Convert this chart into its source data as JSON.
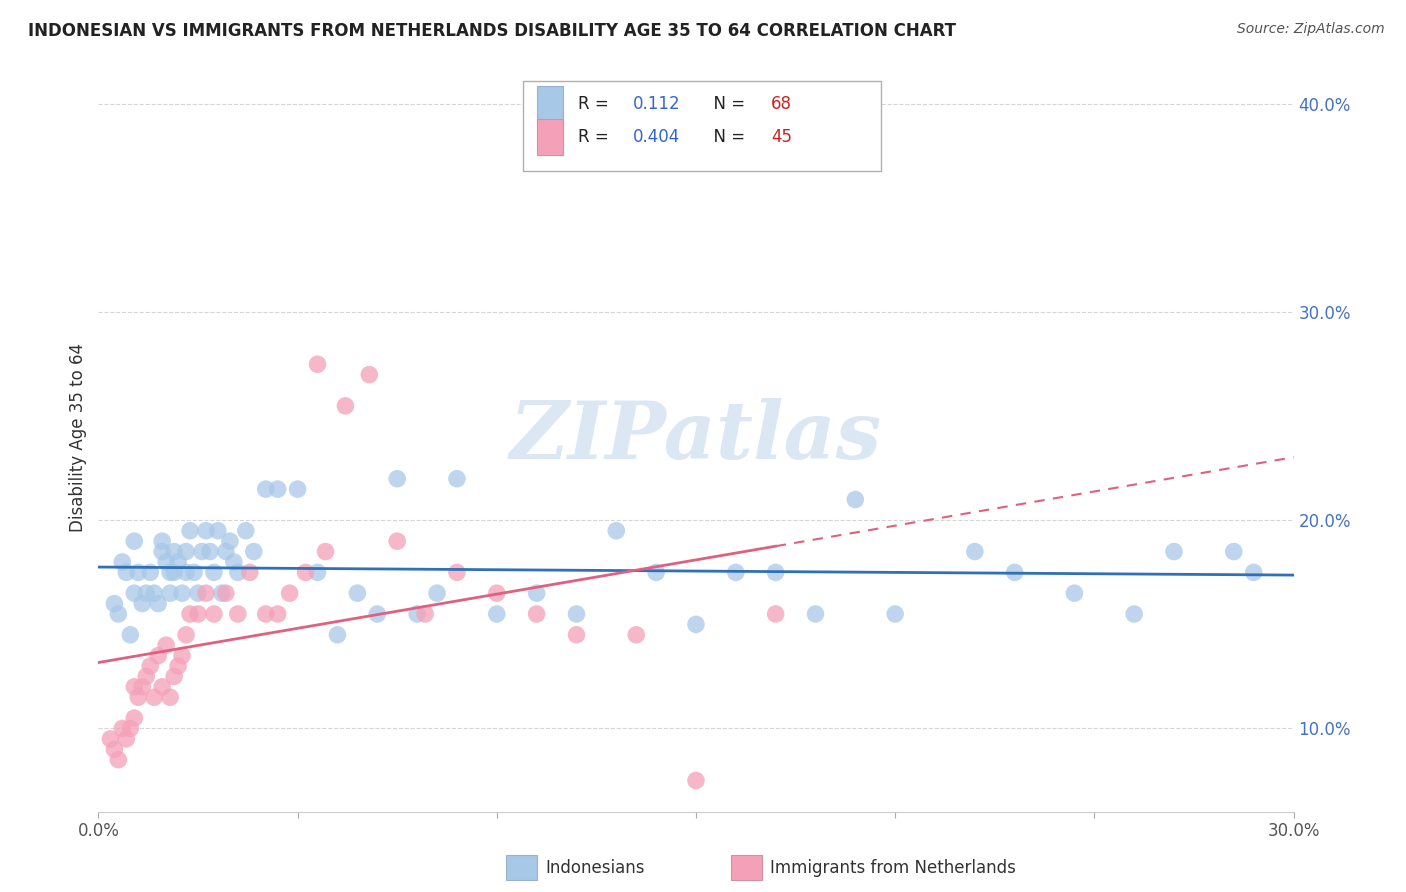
{
  "title": "INDONESIAN VS IMMIGRANTS FROM NETHERLANDS DISABILITY AGE 35 TO 64 CORRELATION CHART",
  "source": "Source: ZipAtlas.com",
  "ylabel": "Disability Age 35 to 64",
  "xlim": [
    0.0,
    0.3
  ],
  "ylim": [
    0.06,
    0.42
  ],
  "color_blue": "#a8c8e8",
  "color_pink": "#f4a0b8",
  "line_blue": "#3070b8",
  "line_pink": "#e06080",
  "legend_r1_label": "R = ",
  "legend_r1_val": "0.112",
  "legend_n1_label": "N = ",
  "legend_n1_val": "68",
  "legend_r2_label": "R = ",
  "legend_r2_val": "0.404",
  "legend_n2_label": "N = ",
  "legend_n2_val": "45",
  "watermark": "ZIPatlas",
  "label_blue": "Indonesians",
  "label_pink": "Immigrants from Netherlands",
  "indonesians_x": [
    0.004,
    0.005,
    0.006,
    0.007,
    0.008,
    0.009,
    0.009,
    0.01,
    0.011,
    0.012,
    0.013,
    0.014,
    0.015,
    0.016,
    0.016,
    0.017,
    0.018,
    0.018,
    0.019,
    0.019,
    0.02,
    0.021,
    0.022,
    0.022,
    0.023,
    0.024,
    0.025,
    0.026,
    0.027,
    0.028,
    0.029,
    0.03,
    0.031,
    0.032,
    0.033,
    0.034,
    0.035,
    0.037,
    0.039,
    0.042,
    0.045,
    0.05,
    0.055,
    0.065,
    0.07,
    0.075,
    0.085,
    0.09,
    0.1,
    0.11,
    0.12,
    0.13,
    0.14,
    0.16,
    0.18,
    0.22,
    0.245,
    0.26,
    0.27,
    0.285,
    0.19,
    0.2,
    0.23,
    0.06,
    0.08,
    0.15,
    0.17,
    0.29
  ],
  "indonesians_y": [
    0.16,
    0.155,
    0.18,
    0.175,
    0.145,
    0.165,
    0.19,
    0.175,
    0.16,
    0.165,
    0.175,
    0.165,
    0.16,
    0.185,
    0.19,
    0.18,
    0.175,
    0.165,
    0.175,
    0.185,
    0.18,
    0.165,
    0.175,
    0.185,
    0.195,
    0.175,
    0.165,
    0.185,
    0.195,
    0.185,
    0.175,
    0.195,
    0.165,
    0.185,
    0.19,
    0.18,
    0.175,
    0.195,
    0.185,
    0.215,
    0.215,
    0.215,
    0.175,
    0.165,
    0.155,
    0.22,
    0.165,
    0.22,
    0.155,
    0.165,
    0.155,
    0.195,
    0.175,
    0.175,
    0.155,
    0.185,
    0.165,
    0.155,
    0.185,
    0.185,
    0.21,
    0.155,
    0.175,
    0.145,
    0.155,
    0.15,
    0.175,
    0.175
  ],
  "netherlands_x": [
    0.003,
    0.004,
    0.005,
    0.006,
    0.007,
    0.008,
    0.009,
    0.009,
    0.01,
    0.011,
    0.012,
    0.013,
    0.014,
    0.015,
    0.016,
    0.017,
    0.018,
    0.019,
    0.02,
    0.021,
    0.022,
    0.023,
    0.025,
    0.027,
    0.029,
    0.032,
    0.035,
    0.038,
    0.042,
    0.048,
    0.052,
    0.057,
    0.062,
    0.068,
    0.075,
    0.082,
    0.09,
    0.1,
    0.11,
    0.12,
    0.135,
    0.15,
    0.17,
    0.055,
    0.045
  ],
  "netherlands_y": [
    0.095,
    0.09,
    0.085,
    0.1,
    0.095,
    0.1,
    0.105,
    0.12,
    0.115,
    0.12,
    0.125,
    0.13,
    0.115,
    0.135,
    0.12,
    0.14,
    0.115,
    0.125,
    0.13,
    0.135,
    0.145,
    0.155,
    0.155,
    0.165,
    0.155,
    0.165,
    0.155,
    0.175,
    0.155,
    0.165,
    0.175,
    0.185,
    0.255,
    0.27,
    0.19,
    0.155,
    0.175,
    0.165,
    0.155,
    0.145,
    0.145,
    0.075,
    0.155,
    0.275,
    0.155
  ]
}
